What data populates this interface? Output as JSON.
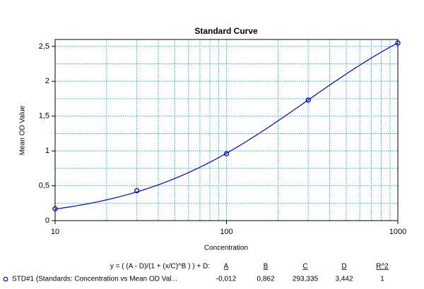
{
  "chart_data": {
    "type": "scatter",
    "title": "Standard Curve",
    "x_label": "Concentration",
    "y_label": "Mean OD Value",
    "x": [
      10,
      30,
      100,
      300,
      1000
    ],
    "series": [
      {
        "name": "STD#1 (Standards: Concentration vs Mean OD Val...",
        "color": "#0000cc",
        "values": [
          0.17,
          0.43,
          0.96,
          1.73,
          2.55
        ]
      }
    ],
    "xscale": "log",
    "xlim": [
      10,
      1000
    ],
    "xticks": [
      10,
      100,
      1000
    ],
    "xminorticks": [
      20,
      30,
      40,
      50,
      60,
      70,
      80,
      90,
      200,
      300,
      400,
      500,
      600,
      700,
      800,
      900
    ],
    "ylim": [
      0,
      2.6
    ],
    "yticks": [
      0,
      {
        "value": 0.5,
        "label": "0,5"
      },
      1,
      {
        "value": 1.5,
        "label": "1,5"
      },
      2,
      {
        "value": 2.5,
        "label": "2,5"
      }
    ],
    "yminorticks": [
      0.25,
      0.75,
      1.25,
      1.75,
      2.25
    ],
    "grid": true,
    "fit": {
      "equation": "y = ( (A - D)/(1 + (x/C)^B ) ) + D:",
      "columns": [
        "A",
        "B",
        "C",
        "D",
        "R^2"
      ],
      "values": [
        {
          "value": -0.012,
          "label": "-0,012"
        },
        {
          "value": 0.862,
          "label": "0,862"
        },
        {
          "value": 293.335,
          "label": "293,335"
        },
        {
          "value": 3.442,
          "label": "3,442"
        },
        1
      ]
    }
  }
}
